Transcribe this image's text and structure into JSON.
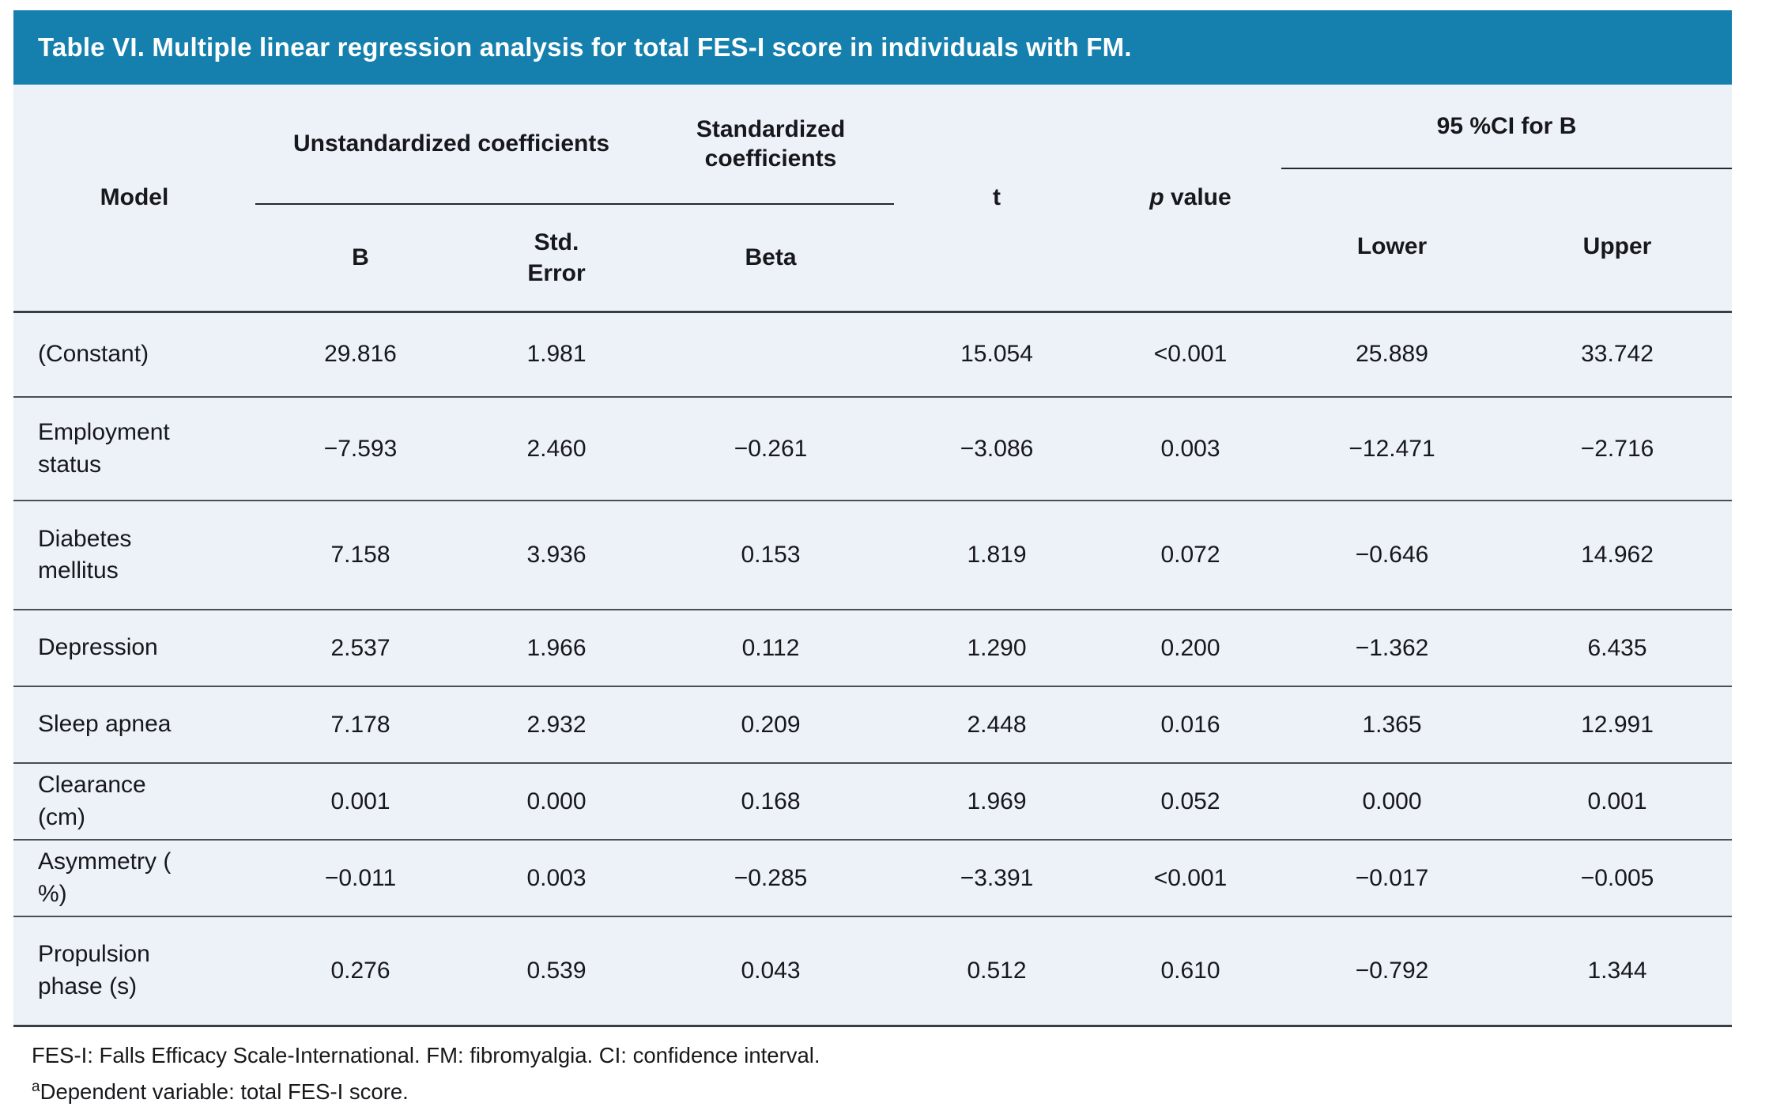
{
  "title": "Table VI. Multiple linear regression analysis for total FES-I score in individuals with FM.",
  "colors": {
    "header_bar": "#1580ae",
    "table_background": "#edf1f8",
    "rule_dark": "#3a3d42",
    "text": "#17181b"
  },
  "header": {
    "model": "Model",
    "unstandardized_group": "Unstandardized coefficients",
    "standardized_group": "Standardized coefficients",
    "t": "t",
    "p_italic": "p",
    "p_rest": " value",
    "ci_group": "95 %CI for B",
    "b": "B",
    "std_error": "Std. Error",
    "beta": "Beta",
    "lower": "Lower",
    "upper": "Upper"
  },
  "rows": [
    {
      "model": "(Constant)",
      "b": "29.816",
      "std_error": "1.981",
      "beta": "",
      "t": "15.054",
      "p": "<0.001",
      "lower": "25.889",
      "upper": "33.742"
    },
    {
      "model": "Employment status",
      "b": "−7.593",
      "std_error": "2.460",
      "beta": "−0.261",
      "t": "−3.086",
      "p": "0.003",
      "lower": "−12.471",
      "upper": "−2.716"
    },
    {
      "model": "Diabetes mellitus",
      "b": "7.158",
      "std_error": "3.936",
      "beta": "0.153",
      "t": "1.819",
      "p": "0.072",
      "lower": "−0.646",
      "upper": "14.962"
    },
    {
      "model": "Depression",
      "b": "2.537",
      "std_error": "1.966",
      "beta": "0.112",
      "t": "1.290",
      "p": "0.200",
      "lower": "−1.362",
      "upper": "6.435"
    },
    {
      "model": "Sleep apnea",
      "b": "7.178",
      "std_error": "2.932",
      "beta": "0.209",
      "t": "2.448",
      "p": "0.016",
      "lower": "1.365",
      "upper": "12.991"
    },
    {
      "model": "Clearance (cm)",
      "b": "0.001",
      "std_error": "0.000",
      "beta": "0.168",
      "t": "1.969",
      "p": "0.052",
      "lower": "0.000",
      "upper": "0.001"
    },
    {
      "model": "Asymmetry ( %)",
      "b": "−0.011",
      "std_error": "0.003",
      "beta": "−0.285",
      "t": "−3.391",
      "p": "<0.001",
      "lower": "−0.017",
      "upper": "−0.005"
    },
    {
      "model": "Propulsion phase (s)",
      "b": "0.276",
      "std_error": "0.539",
      "beta": "0.043",
      "t": "0.512",
      "p": "0.610",
      "lower": "−0.792",
      "upper": "1.344"
    }
  ],
  "footnotes": {
    "abbreviations": "FES-I: Falls Efficacy Scale-International. FM: fibromyalgia. CI: confidence interval.",
    "dependent_marker": "a",
    "dependent_text": "Dependent variable: total FES-I score."
  }
}
